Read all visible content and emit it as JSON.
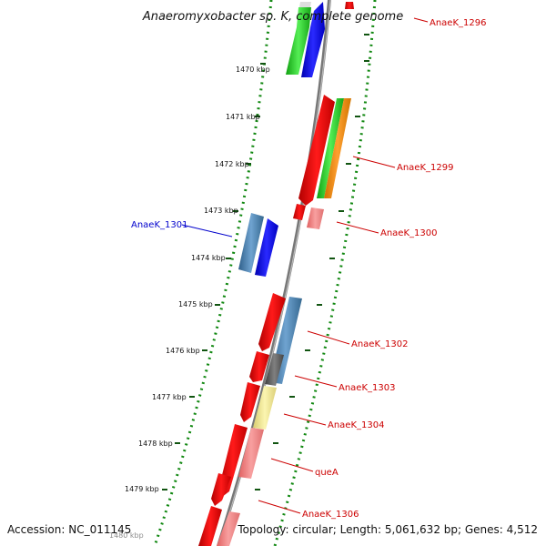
{
  "title": "Anaeromyxobacter sp. K, complete genome",
  "footer": {
    "accession": "Accession: NC_011145",
    "topology": "Topology: circular; Length: 5,061,632 bp; Genes: 4,512"
  },
  "scale_ticks": [
    "1470 kbp",
    "1471 kbp",
    "1472 kbp",
    "1473 kbp",
    "1474 kbp",
    "1475 kbp",
    "1476 kbp",
    "1477 kbp",
    "1478 kbp",
    "1479 kbp",
    "1480 kbp"
  ],
  "gene_labels": [
    {
      "id": "lbl-anaek-1296",
      "text": "AnaeK_1296",
      "color": "#cc0000"
    },
    {
      "id": "lbl-anaek-1299",
      "text": "AnaeK_1299",
      "color": "#cc0000"
    },
    {
      "id": "lbl-anaek-1300",
      "text": "AnaeK_1300",
      "color": "#cc0000"
    },
    {
      "id": "lbl-anaek-1301",
      "text": "AnaeK_1301",
      "color": "#0000cc"
    },
    {
      "id": "lbl-anaek-1302",
      "text": "AnaeK_1302",
      "color": "#cc0000"
    },
    {
      "id": "lbl-anaek-1303",
      "text": "AnaeK_1303",
      "color": "#cc0000"
    },
    {
      "id": "lbl-anaek-1304",
      "text": "AnaeK_1304",
      "color": "#cc0000"
    },
    {
      "id": "lbl-quea",
      "text": "queA",
      "color": "#cc0000"
    },
    {
      "id": "lbl-anaek-1306",
      "text": "AnaeK_1306",
      "color": "#cc0000"
    }
  ],
  "colors": {
    "cds_red": "#ee0000",
    "rrna_pink": "#f08080",
    "cog_blue": "#0000ee",
    "cog_steel": "#4682b4",
    "cog_green": "#22cc22",
    "cog_orange": "#ff8c00",
    "cog_gray": "#555555",
    "cog_khaki": "#f0e68c",
    "backbone": "#888888",
    "gc_dots": "#118811"
  }
}
